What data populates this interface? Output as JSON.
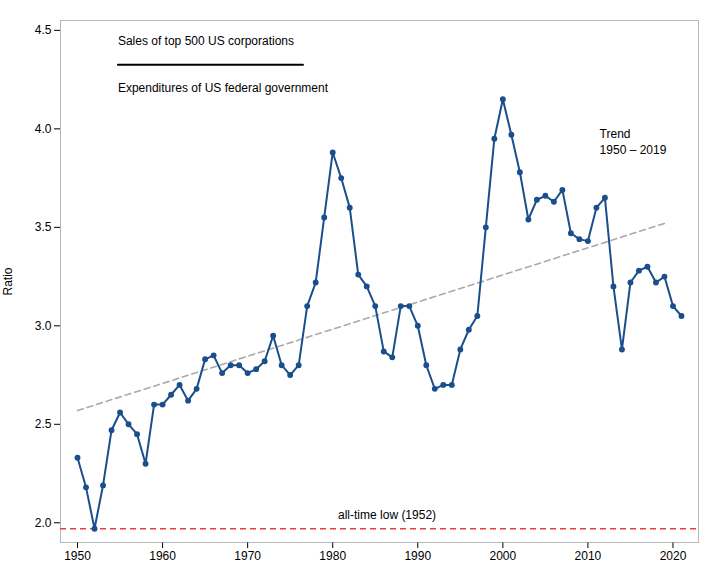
{
  "chart_data": {
    "type": "line",
    "ylabel": "Ratio",
    "x": [
      1950,
      1951,
      1952,
      1953,
      1954,
      1955,
      1956,
      1957,
      1958,
      1959,
      1960,
      1961,
      1962,
      1963,
      1964,
      1965,
      1966,
      1967,
      1968,
      1969,
      1970,
      1971,
      1972,
      1973,
      1974,
      1975,
      1976,
      1977,
      1978,
      1979,
      1980,
      1981,
      1982,
      1983,
      1984,
      1985,
      1986,
      1987,
      1988,
      1989,
      1990,
      1991,
      1992,
      1993,
      1994,
      1995,
      1996,
      1997,
      1998,
      1999,
      2000,
      2001,
      2002,
      2003,
      2004,
      2005,
      2006,
      2007,
      2008,
      2009,
      2010,
      2011,
      2012,
      2013,
      2014,
      2015,
      2016,
      2017,
      2018,
      2019,
      2020,
      2021
    ],
    "series": [
      {
        "color": "#1a4e8c",
        "marker": "o",
        "line_style": "solid",
        "values": [
          2.33,
          2.18,
          1.97,
          2.19,
          2.47,
          2.56,
          2.5,
          2.45,
          2.3,
          2.6,
          2.6,
          2.65,
          2.7,
          2.62,
          2.68,
          2.83,
          2.85,
          2.76,
          2.8,
          2.8,
          2.76,
          2.78,
          2.82,
          2.95,
          2.8,
          2.75,
          2.8,
          3.1,
          3.22,
          3.55,
          3.88,
          3.75,
          3.6,
          3.26,
          3.2,
          3.1,
          2.87,
          2.84,
          3.1,
          3.1,
          3.0,
          2.8,
          2.68,
          2.7,
          2.7,
          2.88,
          2.98,
          3.05,
          3.5,
          3.95,
          4.15,
          3.97,
          3.78,
          3.54,
          3.64,
          3.66,
          3.63,
          3.69,
          3.47,
          3.44,
          3.43,
          3.6,
          3.65,
          3.2,
          2.88,
          3.22,
          3.28,
          3.3,
          3.22,
          3.25,
          3.1,
          3.05
        ]
      }
    ],
    "trend": {
      "x": [
        1950,
        2019
      ],
      "y": [
        2.57,
        3.52
      ],
      "color": "#aaaaaa",
      "line_style": "dashed",
      "label": "Trend\n1950 – 2019"
    },
    "reference_line": {
      "y": 1.97,
      "color": "#e84040",
      "line_style": "dashed",
      "label": "all-time low (1952)"
    },
    "annotations": [
      "Sales of top 500 US corporations",
      "Expenditures of US federal government"
    ],
    "xlim": [
      1948,
      2023
    ],
    "ylim": [
      1.9,
      4.55
    ],
    "xticks": [
      1950,
      1960,
      1970,
      1980,
      1990,
      2000,
      2010,
      2020
    ],
    "yticks": [
      {
        "value": 2.0,
        "label": "2.0"
      },
      2.5,
      {
        "value": 3.0,
        "label": "3.0"
      },
      3.5,
      {
        "value": 4.0,
        "label": "4.0"
      },
      4.5
    ],
    "grid": false
  }
}
